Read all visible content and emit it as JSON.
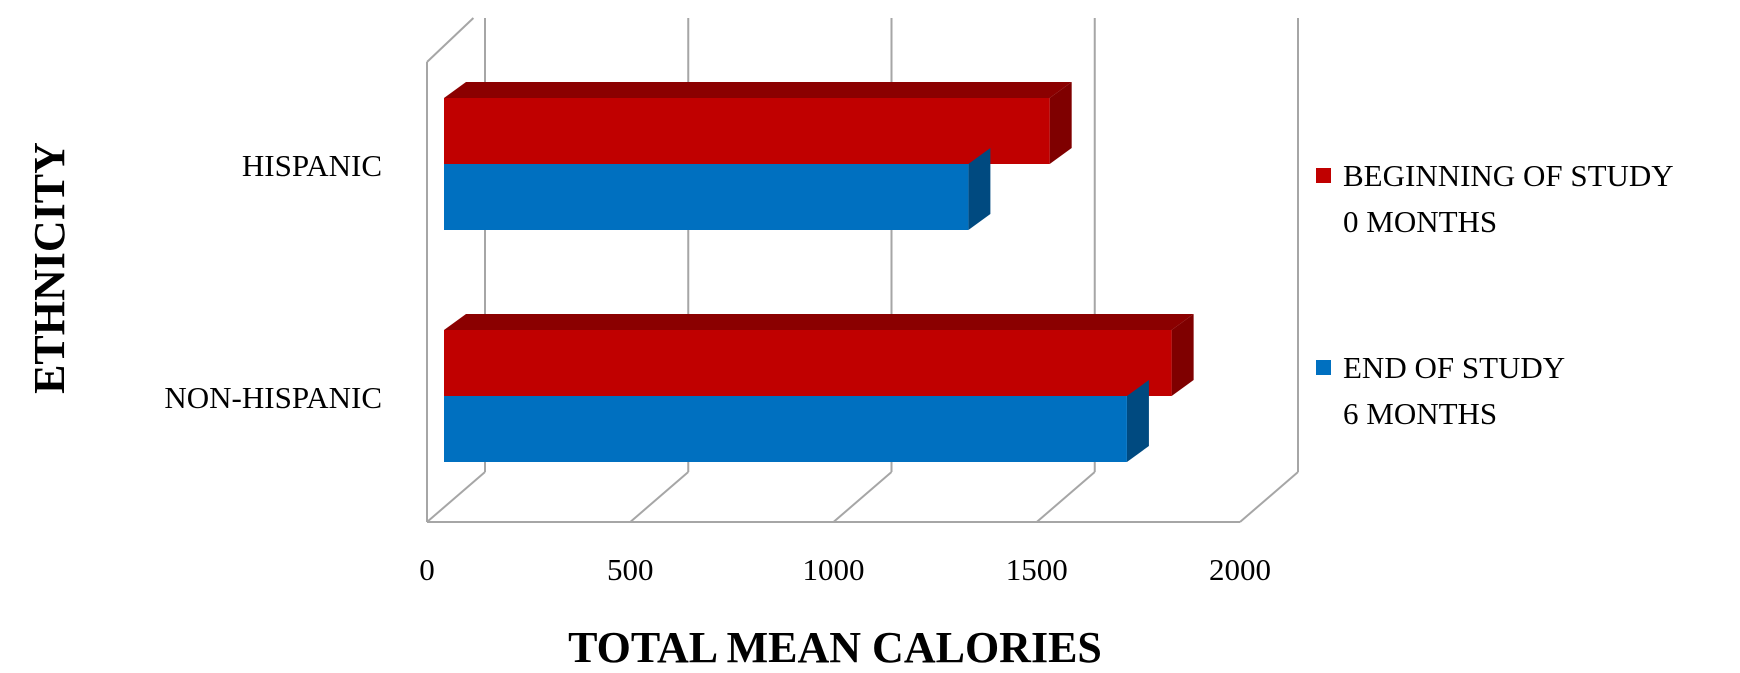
{
  "chart_data": {
    "type": "bar",
    "orientation": "horizontal",
    "style": "3d",
    "xlabel": "TOTAL MEAN CALORIES",
    "ylabel": "ETHNICITY",
    "xlim": [
      0,
      2000
    ],
    "xticks": [
      0,
      500,
      1000,
      1500,
      2000
    ],
    "grid": true,
    "legend_position": "right",
    "categories": [
      "HISPANIC",
      "NON-HISPANIC"
    ],
    "series": [
      {
        "name": "BEGINNING OF STUDY 0 MONTHS",
        "name_lines": [
          "BEGINNING OF STUDY",
          "0 MONTHS"
        ],
        "color": "#c00000",
        "side_color": "#7f0000",
        "top_color": "#8b0000",
        "values": [
          1490,
          1790
        ]
      },
      {
        "name": "END OF STUDY 6 MONTHS",
        "name_lines": [
          "END OF STUDY",
          "6 MONTHS"
        ],
        "color": "#0070c0",
        "side_color": "#004a80",
        "top_color": "#00508a",
        "values": [
          1290,
          1680
        ]
      }
    ]
  }
}
